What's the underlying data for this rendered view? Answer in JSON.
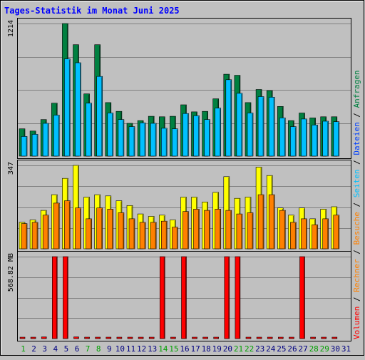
{
  "chart_data": {
    "type": "bar",
    "title": "Tages-Statistik im Monat Juni 2025",
    "days": [
      "1",
      "2",
      "3",
      "4",
      "5",
      "6",
      "7",
      "8",
      "9",
      "10",
      "11",
      "12",
      "13",
      "14",
      "15",
      "16",
      "17",
      "18",
      "19",
      "20",
      "21",
      "22",
      "23",
      "24",
      "25",
      "26",
      "27",
      "28",
      "29",
      "30",
      "31"
    ],
    "weekend_days": [
      "1",
      "7",
      "8",
      "14",
      "15",
      "21",
      "22",
      "28",
      "29"
    ],
    "panels": [
      {
        "name": "requests-files",
        "ymax": 1214,
        "ymax_label": "1214",
        "series": [
          {
            "name": "Anfragen",
            "color": "#008040",
            "values": [
              250,
              230,
              335,
              485,
              1214,
              1020,
              570,
              1020,
              490,
              410,
              300,
              325,
              365,
              360,
              365,
              470,
              405,
              410,
              525,
              750,
              740,
              490,
              610,
              600,
              455,
              325,
              395,
              350,
              360,
              360,
              0
            ]
          },
          {
            "name": "Dateien",
            "color": "#00c0ff",
            "values": [
              180,
              200,
              300,
              375,
              890,
              855,
              485,
              730,
              395,
              335,
              270,
              305,
              300,
              255,
              250,
              390,
              370,
              335,
              440,
              700,
              575,
              395,
              545,
              540,
              350,
              270,
              340,
              285,
              320,
              315,
              0
            ]
          }
        ]
      },
      {
        "name": "pages-visits",
        "ymax": 347,
        "ymax_label": "347",
        "series": [
          {
            "name": "Seiten",
            "color": "#ffff00",
            "values": [
              110,
              120,
              160,
              225,
              293,
              347,
              215,
              225,
              220,
              200,
              180,
              145,
              135,
              140,
              120,
              215,
              215,
              195,
              235,
              300,
              210,
              215,
              340,
              305,
              170,
              140,
              170,
              125,
              165,
              175,
              0
            ]
          },
          {
            "name": "Besuche",
            "color": "#ff8000",
            "values": [
              105,
              110,
              140,
              190,
              200,
              170,
              125,
              170,
              165,
              150,
              125,
              110,
              110,
              115,
              90,
              155,
              165,
              160,
              165,
              160,
              145,
              150,
              225,
              225,
              160,
              110,
              125,
              100,
              125,
              140,
              0
            ]
          }
        ]
      },
      {
        "name": "volume",
        "ymax": 568.82,
        "ymax_label": "568.82 MB",
        "series": [
          {
            "name": "Volumen",
            "color": "#ff0000",
            "values": [
              8,
              10,
              12,
              568.82,
              568.82,
              12,
              6,
              6,
              6,
              6,
              6,
              6,
              6,
              568.82,
              6,
              568.82,
              6,
              6,
              6,
              568.82,
              568.82,
              6,
              6,
              6,
              6,
              6,
              568.82,
              6,
              6,
              6,
              0
            ]
          }
        ]
      }
    ],
    "legend": [
      {
        "label": "Volumen",
        "color": "#ff0000"
      },
      {
        "label": "Rechner",
        "color": "#ff8000"
      },
      {
        "label": "Besuche",
        "color": "#ff8000"
      },
      {
        "label": "Seiten",
        "color": "#00c0ff"
      },
      {
        "label": "Dateien",
        "color": "#0040ff"
      },
      {
        "label": "Anfragen",
        "color": "#008040"
      }
    ],
    "legend_separator": " / ",
    "colors": {
      "title": "#0000ff",
      "background": "#c0c0c0",
      "grid": "#808080",
      "label": "#000000",
      "weekday_label": "#000080",
      "weekend_label": "#00a000"
    }
  }
}
